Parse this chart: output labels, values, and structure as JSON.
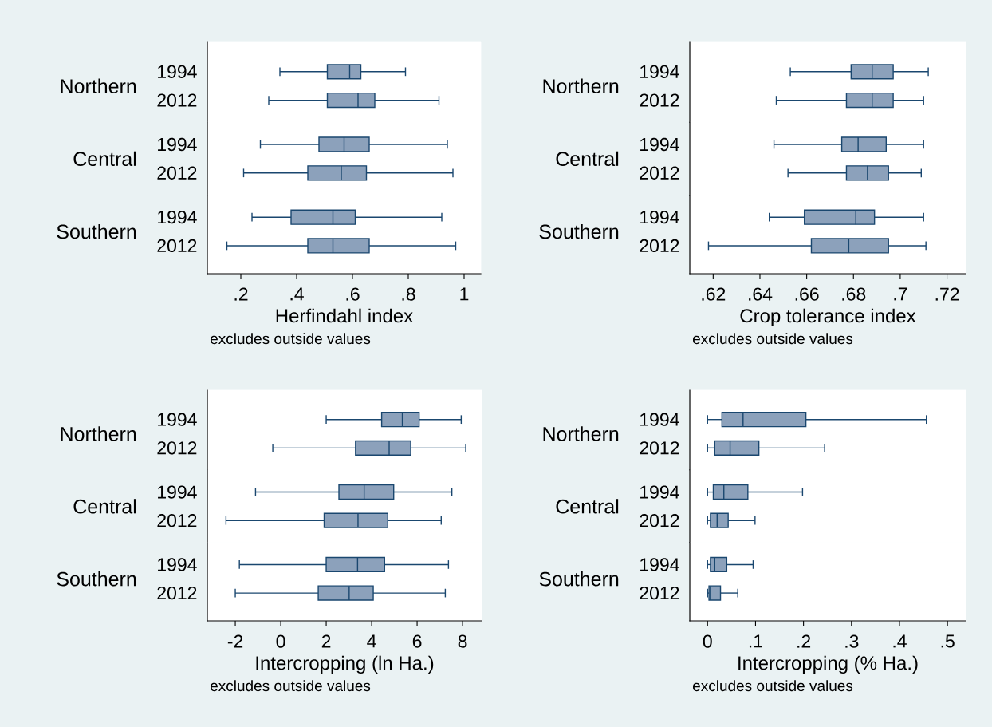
{
  "chart_data": [
    {
      "type": "box",
      "orientation": "horizontal",
      "ylabel": "Northern",
      "categories": [
        "1994",
        "2012"
      ],
      "color": "#8ca1bb",
      "boxes": [
        {
          "low": 0.34,
          "q1": 0.51,
          "median": 0.59,
          "q3": 0.63,
          "high": 0.79
        },
        {
          "low": 0.3,
          "q1": 0.51,
          "median": 0.62,
          "q3": 0.68,
          "high": 0.91
        }
      ],
      "xlim": [
        0.08,
        1.06
      ],
      "tick_labels": "y"
    },
    {
      "type": "box",
      "orientation": "horizontal",
      "ylabel": "Central",
      "categories": [
        "1994",
        "2012"
      ],
      "color": "#8ca1bb",
      "boxes": [
        {
          "low": 0.27,
          "q1": 0.48,
          "median": 0.57,
          "q3": 0.66,
          "high": 0.94
        },
        {
          "low": 0.21,
          "q1": 0.44,
          "median": 0.56,
          "q3": 0.65,
          "high": 0.96
        }
      ],
      "xlim": [
        0.08,
        1.06
      ],
      "tick_labels": "y"
    },
    {
      "type": "box",
      "orientation": "horizontal",
      "ylabel": "Southern",
      "categories": [
        "1994",
        "2012"
      ],
      "color": "#8ca1bb",
      "boxes": [
        {
          "low": 0.24,
          "q1": 0.38,
          "median": 0.53,
          "q3": 0.61,
          "high": 0.92
        },
        {
          "low": 0.15,
          "q1": 0.44,
          "median": 0.53,
          "q3": 0.66,
          "high": 0.97
        }
      ],
      "xlabel": "Herfindahl index",
      "xlim": [
        0.08,
        1.06
      ],
      "xticks": [
        {
          "value": 0.2,
          "label": ".2"
        },
        {
          "value": 0.4,
          "label": ".4"
        },
        {
          "value": 0.6,
          "label": ".6"
        },
        {
          "value": 0.8,
          "label": ".8"
        },
        1
      ],
      "annotations": [
        "excludes outside values"
      ]
    },
    {
      "type": "box",
      "orientation": "horizontal",
      "ylabel": "Northern",
      "categories": [
        "1994",
        "2012"
      ],
      "color": "#8ca1bb",
      "boxes": [
        {
          "low": 0.653,
          "q1": 0.679,
          "median": 0.688,
          "q3": 0.697,
          "high": 0.712
        },
        {
          "low": 0.647,
          "q1": 0.677,
          "median": 0.688,
          "q3": 0.697,
          "high": 0.71
        }
      ],
      "xlim": [
        0.61,
        0.728
      ],
      "tick_labels": "y"
    },
    {
      "type": "box",
      "orientation": "horizontal",
      "ylabel": "Central",
      "categories": [
        "1994",
        "2012"
      ],
      "color": "#8ca1bb",
      "boxes": [
        {
          "low": 0.646,
          "q1": 0.675,
          "median": 0.682,
          "q3": 0.694,
          "high": 0.71
        },
        {
          "low": 0.652,
          "q1": 0.677,
          "median": 0.686,
          "q3": 0.695,
          "high": 0.709
        }
      ],
      "xlim": [
        0.61,
        0.728
      ],
      "tick_labels": "y"
    },
    {
      "type": "box",
      "orientation": "horizontal",
      "ylabel": "Southern",
      "categories": [
        "1994",
        "2012"
      ],
      "color": "#8ca1bb",
      "boxes": [
        {
          "low": 0.644,
          "q1": 0.659,
          "median": 0.681,
          "q3": 0.689,
          "high": 0.71
        },
        {
          "low": 0.618,
          "q1": 0.662,
          "median": 0.678,
          "q3": 0.695,
          "high": 0.711
        }
      ],
      "xlabel": "Crop tolerance index",
      "xlim": [
        0.61,
        0.728
      ],
      "xticks": [
        {
          "value": 0.62,
          "label": ".62"
        },
        {
          "value": 0.64,
          "label": ".64"
        },
        {
          "value": 0.66,
          "label": ".66"
        },
        {
          "value": 0.68,
          "label": ".68"
        },
        {
          "value": 0.7,
          "label": ".7"
        },
        {
          "value": 0.72,
          "label": ".72"
        }
      ],
      "annotations": [
        "excludes outside values"
      ]
    },
    {
      "type": "box",
      "orientation": "horizontal",
      "ylabel": "Northern",
      "categories": [
        "1994",
        "2012"
      ],
      "color": "#8ca1bb",
      "boxes": [
        {
          "low": 2.0,
          "q1": 4.44,
          "median": 5.35,
          "q3": 6.09,
          "high": 7.94
        },
        {
          "low": -0.35,
          "q1": 3.29,
          "median": 4.77,
          "q3": 5.72,
          "high": 8.14
        }
      ],
      "xlim": [
        -3.23,
        8.84
      ],
      "tick_labels": "y"
    },
    {
      "type": "box",
      "orientation": "horizontal",
      "ylabel": "Central",
      "categories": [
        "1994",
        "2012"
      ],
      "color": "#8ca1bb",
      "boxes": [
        {
          "low": -1.11,
          "q1": 2.56,
          "median": 3.67,
          "q3": 4.97,
          "high": 7.53
        },
        {
          "low": -2.41,
          "q1": 1.91,
          "median": 3.4,
          "q3": 4.71,
          "high": 7.06
        }
      ],
      "xlim": [
        -3.23,
        8.84
      ],
      "tick_labels": "y"
    },
    {
      "type": "box",
      "orientation": "horizontal",
      "ylabel": "Southern",
      "categories": [
        "1994",
        "2012"
      ],
      "color": "#8ca1bb",
      "boxes": [
        {
          "low": -1.82,
          "q1": 2.0,
          "median": 3.38,
          "q3": 4.57,
          "high": 7.38
        },
        {
          "low": -2.0,
          "q1": 1.65,
          "median": 3.01,
          "q3": 4.07,
          "high": 7.24
        }
      ],
      "xlabel": "Intercropping (ln Ha.)",
      "xlim": [
        -3.23,
        8.84
      ],
      "xticks": [
        -2,
        0,
        2,
        4,
        6,
        8
      ],
      "annotations": [
        "excludes outside values"
      ]
    },
    {
      "type": "box",
      "orientation": "horizontal",
      "ylabel": "Northern",
      "categories": [
        "1994",
        "2012"
      ],
      "color": "#8ca1bb",
      "boxes": [
        {
          "low": 0.0,
          "q1": 0.03,
          "median": 0.074,
          "q3": 0.205,
          "high": 0.456
        },
        {
          "low": 0.0,
          "q1": 0.015,
          "median": 0.047,
          "q3": 0.107,
          "high": 0.244
        }
      ],
      "xlim": [
        -0.037,
        0.538
      ],
      "tick_labels": "y"
    },
    {
      "type": "box",
      "orientation": "horizontal",
      "ylabel": "Central",
      "categories": [
        "1994",
        "2012"
      ],
      "color": "#8ca1bb",
      "boxes": [
        {
          "low": 0.0,
          "q1": 0.012,
          "median": 0.034,
          "q3": 0.084,
          "high": 0.198
        },
        {
          "low": 0.0,
          "q1": 0.006,
          "median": 0.02,
          "q3": 0.043,
          "high": 0.099
        }
      ],
      "xlim": [
        -0.037,
        0.538
      ],
      "tick_labels": "y"
    },
    {
      "type": "box",
      "orientation": "horizontal",
      "ylabel": "Southern",
      "categories": [
        "1994",
        "2012"
      ],
      "color": "#8ca1bb",
      "boxes": [
        {
          "low": 0.0,
          "q1": 0.006,
          "median": 0.015,
          "q3": 0.04,
          "high": 0.095
        },
        {
          "low": 0.0,
          "q1": 0.003,
          "median": 0.006,
          "q3": 0.027,
          "high": 0.063
        }
      ],
      "xlabel": "Intercropping (% Ha.)",
      "xlim": [
        -0.037,
        0.538
      ],
      "xticks": [
        0,
        {
          "value": 0.1,
          "label": ".1"
        },
        {
          "value": 0.2,
          "label": ".2"
        },
        {
          "value": 0.3,
          "label": ".3"
        },
        {
          "value": 0.4,
          "label": ".4"
        },
        {
          "value": 0.5,
          "label": ".5"
        }
      ],
      "annotations": [
        "excludes outside values"
      ]
    }
  ]
}
